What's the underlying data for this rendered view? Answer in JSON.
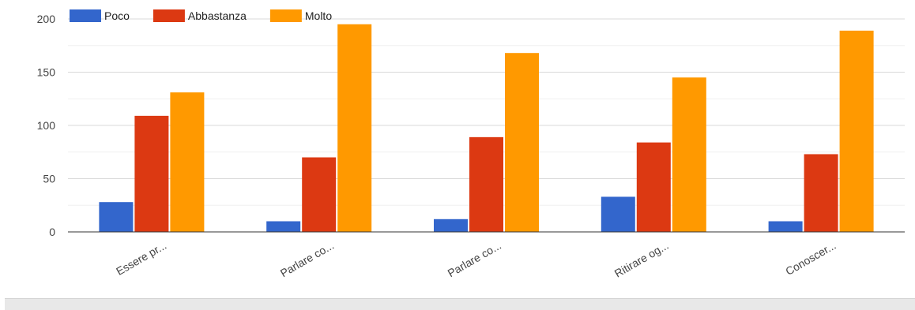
{
  "chart_data": {
    "type": "bar",
    "categories": [
      "Essere pr...",
      "Parlare co...",
      "Parlare co...",
      "Ritirare og...",
      "Conoscer..."
    ],
    "series": [
      {
        "name": "Poco",
        "color": "#3366cc",
        "values": [
          28,
          10,
          12,
          33,
          10
        ]
      },
      {
        "name": "Abbastanza",
        "color": "#dc3912",
        "values": [
          109,
          70,
          89,
          84,
          73
        ]
      },
      {
        "name": "Molto",
        "color": "#ff9900",
        "values": [
          131,
          195,
          168,
          145,
          189
        ]
      }
    ],
    "ylim": [
      0,
      200
    ],
    "yticks": [
      0,
      50,
      100,
      150,
      200
    ],
    "grid": true,
    "legend": "top-left"
  }
}
